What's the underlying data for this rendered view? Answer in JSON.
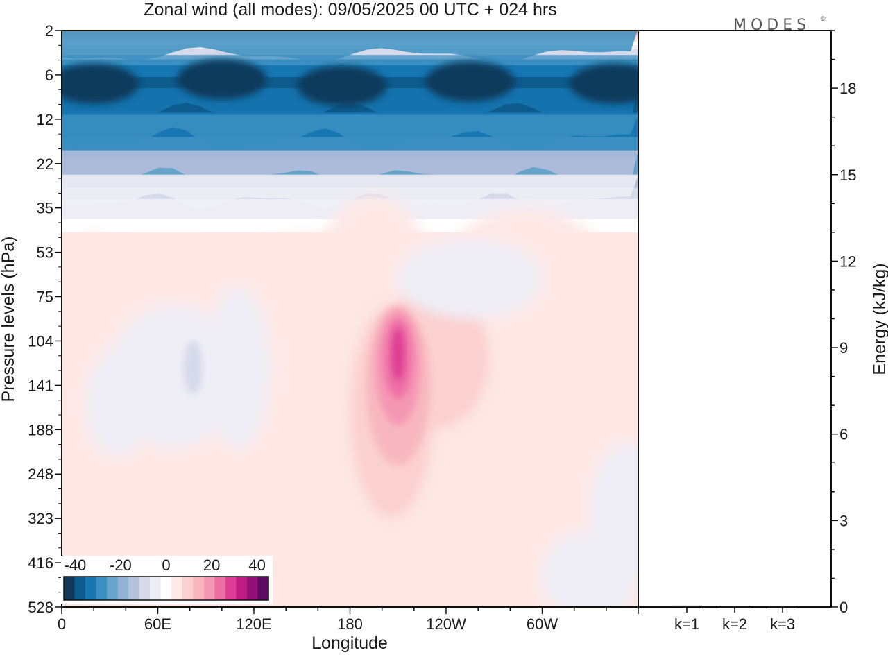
{
  "title": "Zonal wind (all modes):  09/05/2025  00 UTC  + 024 hrs",
  "logo": "MODES",
  "logo_mark": "©",
  "chart_data": [
    {
      "type": "heatmap",
      "title": "Zonal wind (all modes):  09/05/2025  00 UTC  + 024 hrs",
      "xlabel": "Longitude",
      "ylabel": "Pressure levels (hPa)",
      "x_ticks": [
        "0",
        "60E",
        "120E",
        "180",
        "120W",
        "60W"
      ],
      "x_tick_values": [
        0,
        60,
        120,
        180,
        240,
        300
      ],
      "xlim": [
        0,
        360
      ],
      "y_ticks": [
        "2",
        "6",
        "12",
        "22",
        "35",
        "53",
        "75",
        "104",
        "141",
        "188",
        "248",
        "323",
        "416",
        "528"
      ],
      "y_scale": "model levels (pressure, irregular spacing)",
      "colorbar": {
        "ticks": [
          "-40",
          "-20",
          "0",
          "20",
          "40"
        ],
        "tick_values": [
          -40,
          -20,
          0,
          20,
          40
        ],
        "range": [
          -45,
          45
        ],
        "step": 5,
        "colors": [
          "#0f3a5c",
          "#0d5a8c",
          "#1677b3",
          "#3b8fc1",
          "#66a4cc",
          "#93b3d4",
          "#b7c0db",
          "#d6d9e9",
          "#efeef6",
          "#ffffff",
          "#fde8e6",
          "#fbd0cf",
          "#f8b7c0",
          "#f598b4",
          "#ee6fa6",
          "#dd3e93",
          "#c01b82",
          "#921076",
          "#5e0a63"
        ]
      },
      "features": [
        {
          "name": "easterly jet",
          "lon_range": [
            0,
            360
          ],
          "pressure_range": [
            4,
            20
          ],
          "value_min": -40
        },
        {
          "name": "westerly jet core",
          "lon": 210,
          "pressure": 141,
          "value_max": 40
        }
      ]
    },
    {
      "type": "bar",
      "ylabel": "Energy (kJ/kg)",
      "categories": [
        "k=1",
        "k=2",
        "k=3"
      ],
      "values": [
        0.05,
        0.02,
        0.02
      ],
      "ylim": [
        0,
        20
      ],
      "y_ticks": [
        "0",
        "3",
        "6",
        "9",
        "12",
        "15",
        "18"
      ],
      "y_tick_values": [
        0,
        3,
        6,
        9,
        12,
        15,
        18
      ]
    }
  ]
}
